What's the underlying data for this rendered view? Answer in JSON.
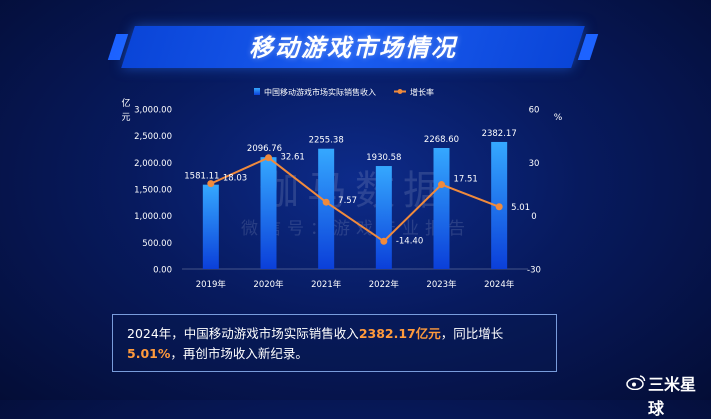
{
  "title": "移动游戏市场情况",
  "chart_data": {
    "type": "bar",
    "categories": [
      "2019年",
      "2020年",
      "2021年",
      "2022年",
      "2023年",
      "2024年"
    ],
    "series": [
      {
        "name": "中国移动游戏市场实际销售收入",
        "type": "bar",
        "axis": "left",
        "values": [
          1581.11,
          2096.76,
          2255.38,
          1930.58,
          2268.6,
          2382.17
        ],
        "labels": [
          "1581.11",
          "2096.76",
          "2255.38",
          "1930.58",
          "2268.60",
          "2382.17"
        ]
      },
      {
        "name": "增长率",
        "type": "line",
        "axis": "right",
        "values": [
          18.03,
          32.61,
          7.57,
          -14.4,
          17.51,
          5.01
        ],
        "labels": [
          "18.03",
          "32.61",
          "7.57",
          "-14.40",
          "17.51",
          "5.01"
        ]
      }
    ],
    "ylabel_left": "亿元",
    "ylabel_right": "%",
    "ylim_left": [
      0,
      3000
    ],
    "yticks_left": [
      "0.00",
      "500.00",
      "1,000.00",
      "1,500.00",
      "2,000.00",
      "2,500.00",
      "3,000.00"
    ],
    "ylim_right": [
      -30,
      60
    ],
    "yticks_right": [
      "-30",
      "0",
      "30",
      "60"
    ],
    "legend_position": "top",
    "colors": {
      "bar": "#1e7bff",
      "line": "#f08a3c",
      "text": "#ffffff"
    }
  },
  "watermark": {
    "line1": "伽马数据",
    "line2": "微信号：游戏产业报告"
  },
  "note": {
    "prefix": "2024年，中国移动游戏市场实际销售收入",
    "value": "2382.17亿元",
    "middle": "，同比增长",
    "rate": "5.01%",
    "suffix": "，再创市场收入新纪录。"
  },
  "brand": "三米星球"
}
